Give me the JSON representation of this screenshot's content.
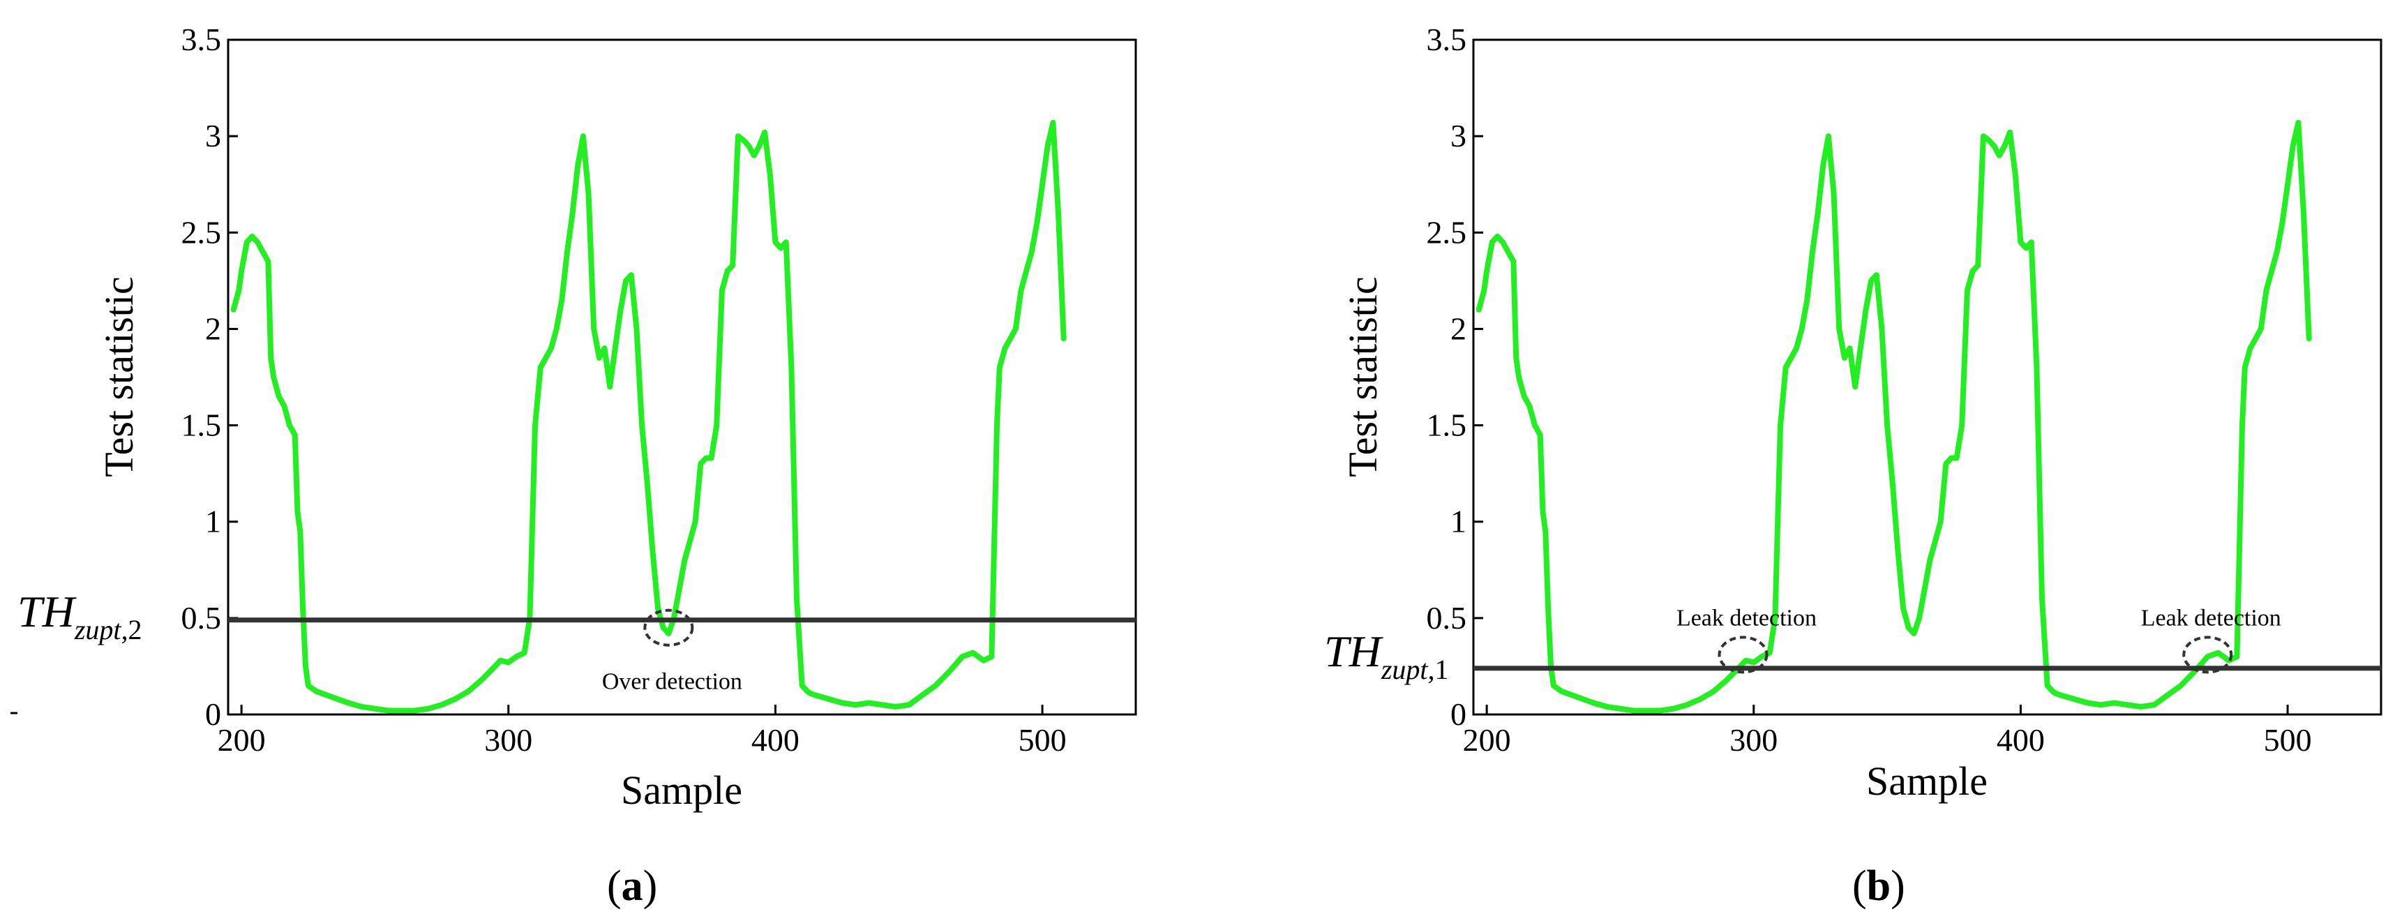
{
  "chart_data": [
    {
      "type": "line",
      "panel_label": "(a)",
      "panel_letter": "a",
      "xlabel": "Sample",
      "ylabel": "Test statistic",
      "xlim": [
        195,
        535
      ],
      "ylim": [
        0,
        3.5
      ],
      "x_ticks": [
        200,
        300,
        400,
        500
      ],
      "y_ticks": [
        0,
        0.5,
        1,
        1.5,
        2,
        2.5,
        3,
        3.5
      ],
      "y_tick_labels": [
        "0",
        "0.5",
        "1",
        "1.5",
        "2",
        "2.5",
        "3",
        "3.5"
      ],
      "threshold": {
        "value": 0.49,
        "label_main": "TH",
        "label_sub": "zupt,",
        "label_index": "2"
      },
      "annotations": [
        {
          "text": "Over detection",
          "x": 360,
          "y": 0.45
        }
      ],
      "series": [
        {
          "name": "test statistic",
          "color": "#22ee22",
          "x": [
            197,
            199,
            200,
            202,
            204,
            206,
            208,
            210,
            211,
            212,
            214,
            216,
            218,
            220,
            221,
            222,
            223,
            224,
            225,
            228,
            232,
            236,
            240,
            245,
            250,
            255,
            260,
            265,
            270,
            275,
            280,
            285,
            290,
            295,
            297,
            300,
            303,
            306,
            308,
            310,
            312,
            314,
            316,
            318,
            320,
            322,
            324,
            326,
            328,
            330,
            332,
            334,
            336,
            338,
            340,
            342,
            344,
            346,
            348,
            350,
            352,
            354,
            356,
            358,
            360,
            362,
            364,
            366,
            368,
            370,
            372,
            374,
            376,
            378,
            380,
            382,
            384,
            386,
            388,
            390,
            392,
            394,
            396,
            398,
            400,
            402,
            404,
            406,
            408,
            410,
            412,
            413,
            415,
            420,
            425,
            430,
            435,
            440,
            445,
            450,
            455,
            460,
            465,
            470,
            474,
            478,
            481,
            483,
            484,
            486,
            488,
            490,
            492,
            494,
            496,
            498,
            500,
            502,
            504,
            506,
            508
          ],
          "y": [
            2.1,
            2.2,
            2.3,
            2.45,
            2.48,
            2.45,
            2.4,
            2.35,
            1.85,
            1.75,
            1.65,
            1.6,
            1.5,
            1.45,
            1.05,
            0.95,
            0.55,
            0.25,
            0.15,
            0.12,
            0.1,
            0.08,
            0.06,
            0.04,
            0.03,
            0.02,
            0.02,
            0.02,
            0.03,
            0.05,
            0.08,
            0.12,
            0.18,
            0.25,
            0.28,
            0.27,
            0.3,
            0.32,
            0.5,
            1.5,
            1.8,
            1.85,
            1.9,
            2.0,
            2.15,
            2.4,
            2.6,
            2.85,
            3.0,
            2.7,
            2.0,
            1.85,
            1.9,
            1.7,
            1.9,
            2.1,
            2.25,
            2.28,
            2.0,
            1.5,
            1.2,
            0.85,
            0.55,
            0.45,
            0.42,
            0.5,
            0.65,
            0.8,
            0.9,
            1.0,
            1.3,
            1.33,
            1.33,
            1.5,
            2.2,
            2.3,
            2.33,
            3.0,
            2.98,
            2.95,
            2.9,
            2.95,
            3.02,
            2.8,
            2.45,
            2.42,
            2.45,
            1.8,
            0.6,
            0.15,
            0.12,
            0.11,
            0.1,
            0.08,
            0.06,
            0.05,
            0.06,
            0.05,
            0.04,
            0.05,
            0.1,
            0.15,
            0.22,
            0.3,
            0.32,
            0.28,
            0.3,
            1.5,
            1.8,
            1.9,
            1.95,
            2.0,
            2.2,
            2.3,
            2.4,
            2.55,
            2.75,
            2.95,
            3.07,
            2.6,
            1.95
          ]
        }
      ]
    },
    {
      "type": "line",
      "panel_label": "(b)",
      "panel_letter": "b",
      "xlabel": "Sample",
      "ylabel": "Test statistic",
      "xlim": [
        195,
        535
      ],
      "ylim": [
        0,
        3.5
      ],
      "x_ticks": [
        200,
        300,
        400,
        500
      ],
      "y_ticks": [
        0,
        0.5,
        1,
        1.5,
        2,
        2.5,
        3,
        3.5
      ],
      "y_tick_labels": [
        "0",
        "0.5",
        "1",
        "1.5",
        "2",
        "2.5",
        "3",
        "3.5"
      ],
      "threshold": {
        "value": 0.24,
        "label_main": "TH",
        "label_sub": "zupt,",
        "label_index": "1"
      },
      "annotations": [
        {
          "text": "Leak detection",
          "x": 296,
          "y": 0.31
        },
        {
          "text": "Leak detection",
          "x": 470,
          "y": 0.31
        }
      ],
      "series": [
        {
          "name": "test statistic",
          "color": "#22ee22",
          "x": [
            197,
            199,
            200,
            202,
            204,
            206,
            208,
            210,
            211,
            212,
            214,
            216,
            218,
            220,
            221,
            222,
            223,
            224,
            225,
            228,
            232,
            236,
            240,
            245,
            250,
            255,
            260,
            265,
            270,
            275,
            280,
            285,
            290,
            295,
            297,
            300,
            303,
            306,
            308,
            310,
            312,
            314,
            316,
            318,
            320,
            322,
            324,
            326,
            328,
            330,
            332,
            334,
            336,
            338,
            340,
            342,
            344,
            346,
            348,
            350,
            352,
            354,
            356,
            358,
            360,
            362,
            364,
            366,
            368,
            370,
            372,
            374,
            376,
            378,
            380,
            382,
            384,
            386,
            388,
            390,
            392,
            394,
            396,
            398,
            400,
            402,
            404,
            406,
            408,
            410,
            412,
            413,
            415,
            420,
            425,
            430,
            435,
            440,
            445,
            450,
            455,
            460,
            465,
            470,
            474,
            478,
            481,
            483,
            484,
            486,
            488,
            490,
            492,
            494,
            496,
            498,
            500,
            502,
            504,
            506,
            508
          ],
          "y": [
            2.1,
            2.2,
            2.3,
            2.45,
            2.48,
            2.45,
            2.4,
            2.35,
            1.85,
            1.75,
            1.65,
            1.6,
            1.5,
            1.45,
            1.05,
            0.95,
            0.55,
            0.25,
            0.15,
            0.12,
            0.1,
            0.08,
            0.06,
            0.04,
            0.03,
            0.02,
            0.02,
            0.02,
            0.03,
            0.05,
            0.08,
            0.12,
            0.18,
            0.25,
            0.28,
            0.27,
            0.3,
            0.32,
            0.5,
            1.5,
            1.8,
            1.85,
            1.9,
            2.0,
            2.15,
            2.4,
            2.6,
            2.85,
            3.0,
            2.7,
            2.0,
            1.85,
            1.9,
            1.7,
            1.9,
            2.1,
            2.25,
            2.28,
            2.0,
            1.5,
            1.2,
            0.85,
            0.55,
            0.45,
            0.42,
            0.5,
            0.65,
            0.8,
            0.9,
            1.0,
            1.3,
            1.33,
            1.33,
            1.5,
            2.2,
            2.3,
            2.33,
            3.0,
            2.98,
            2.95,
            2.9,
            2.95,
            3.02,
            2.8,
            2.45,
            2.42,
            2.45,
            1.8,
            0.6,
            0.15,
            0.12,
            0.11,
            0.1,
            0.08,
            0.06,
            0.05,
            0.06,
            0.05,
            0.04,
            0.05,
            0.1,
            0.15,
            0.22,
            0.3,
            0.32,
            0.28,
            0.3,
            1.5,
            1.8,
            1.9,
            1.95,
            2.0,
            2.2,
            2.3,
            2.4,
            2.55,
            2.75,
            2.95,
            3.07,
            2.6,
            1.95
          ]
        }
      ]
    }
  ]
}
